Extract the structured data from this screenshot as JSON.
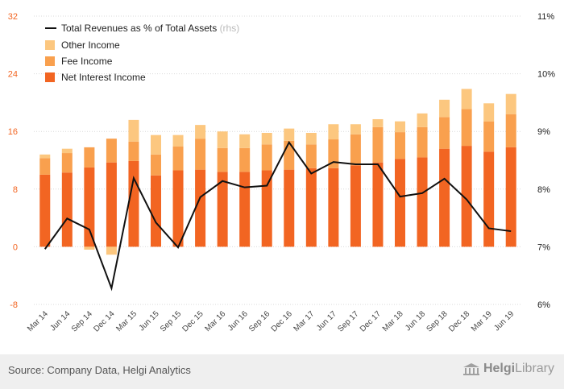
{
  "chart_data": {
    "type": "bar",
    "categories": [
      "Mar 14",
      "Jun 14",
      "Sep 14",
      "Dec 14",
      "Mar 15",
      "Jun 15",
      "Sep 15",
      "Dec 15",
      "Mar 16",
      "Jun 16",
      "Sep 16",
      "Dec 16",
      "Mar 17",
      "Jun 17",
      "Sep 17",
      "Dec 17",
      "Mar 18",
      "Jun 18",
      "Sep 18",
      "Dec 18",
      "Mar 19",
      "Jun 19"
    ],
    "series": [
      {
        "name": "Net Interest Income",
        "color": "#f26522",
        "values": [
          10.0,
          10.3,
          11.0,
          11.7,
          11.9,
          9.9,
          10.6,
          10.7,
          10.4,
          10.4,
          10.6,
          10.7,
          10.9,
          10.9,
          11.3,
          11.7,
          12.2,
          12.4,
          13.6,
          14.0,
          13.2,
          13.8
        ]
      },
      {
        "name": "Fee Income",
        "color": "#f9a04e",
        "values": [
          2.3,
          2.7,
          2.8,
          3.3,
          2.7,
          2.9,
          3.3,
          4.3,
          3.3,
          3.3,
          3.6,
          4.0,
          3.3,
          4.0,
          4.3,
          4.9,
          3.7,
          4.2,
          4.4,
          5.1,
          4.2,
          4.6
        ]
      },
      {
        "name": "Other Income",
        "color": "#fcc77f",
        "values": [
          0.5,
          0.6,
          -0.4,
          -1.1,
          3.0,
          2.7,
          1.6,
          1.9,
          2.3,
          1.9,
          1.6,
          1.7,
          1.6,
          2.1,
          1.4,
          1.1,
          1.5,
          1.9,
          2.4,
          2.8,
          2.5,
          2.8
        ]
      }
    ],
    "line": {
      "name": "Total Revenues as % of Total Assets",
      "suffix": "(rhs)",
      "color": "#111111",
      "values": [
        6.96,
        7.49,
        7.3,
        6.28,
        8.19,
        7.42,
        6.99,
        7.86,
        8.14,
        8.03,
        8.06,
        8.81,
        8.27,
        8.47,
        8.43,
        8.43,
        7.87,
        7.93,
        8.18,
        7.82,
        7.32,
        7.27
      ]
    },
    "y_left": {
      "min": -8,
      "max": 32,
      "ticks": [
        "32",
        "24",
        "16",
        "8",
        "0",
        "-8"
      ]
    },
    "y_right": {
      "min": 6,
      "max": 11,
      "ticks": [
        "11%",
        "10%",
        "9%",
        "8%",
        "7%",
        "6%"
      ]
    },
    "legend_placement": "top-left",
    "grid": true
  },
  "footer": {
    "source": "Source: Company Data, Helgi Analytics",
    "logo_a": "Helgi",
    "logo_b": "Library"
  }
}
